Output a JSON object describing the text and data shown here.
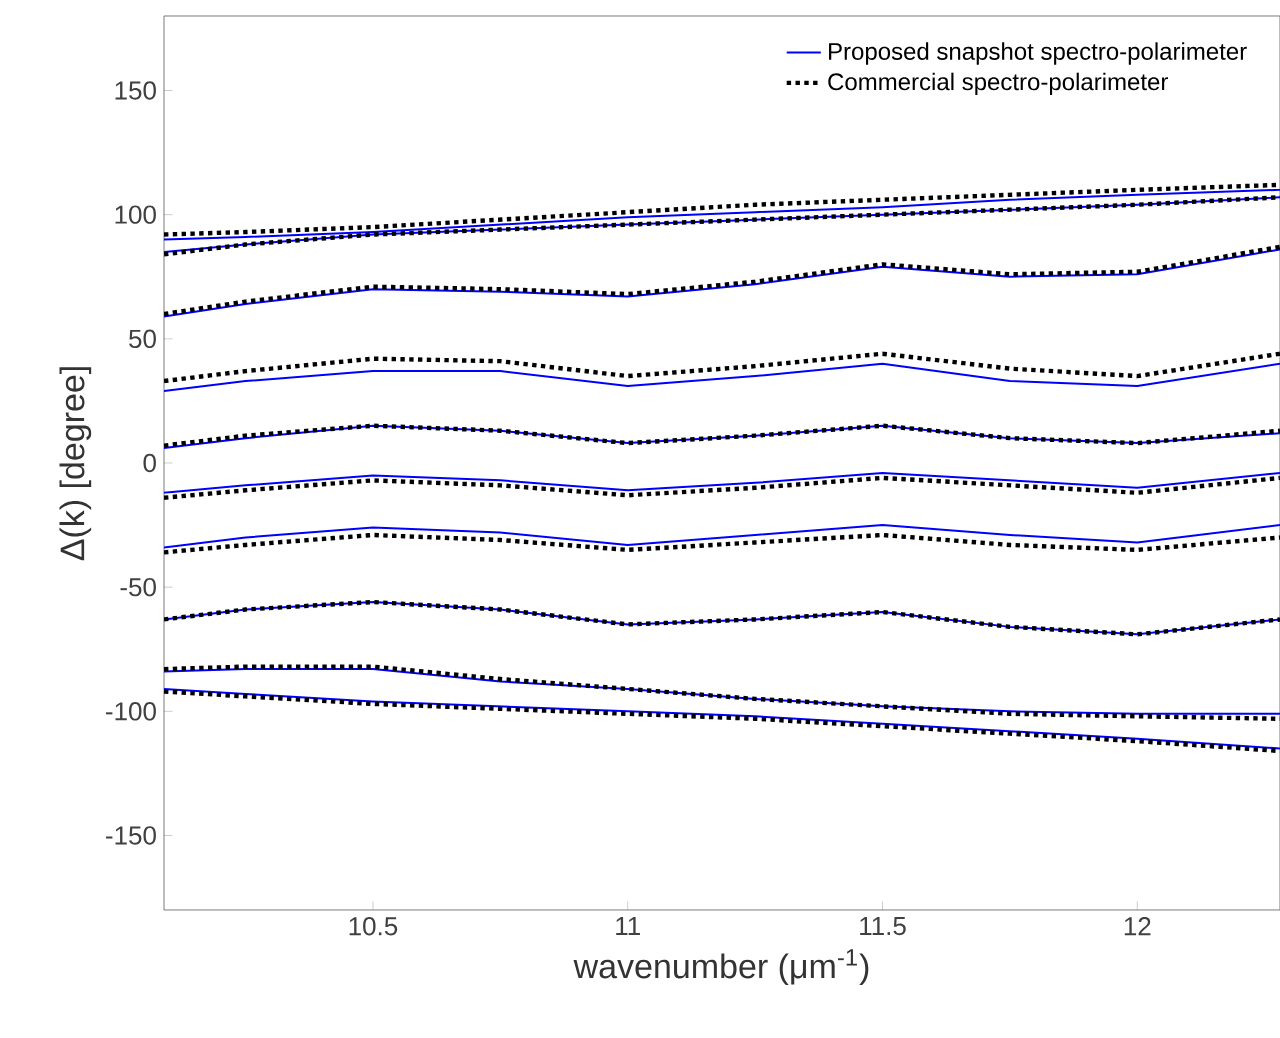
{
  "chart_data": {
    "type": "line",
    "xlabel": "wavenumber (μm$^{-1}$)",
    "ylabel": "Δ(k) [degree]",
    "x": [
      10.09,
      10.25,
      10.5,
      10.75,
      11.0,
      11.25,
      11.5,
      11.75,
      12.0,
      12.28
    ],
    "xlim": [
      10.09,
      12.28
    ],
    "ylim": [
      -180,
      180
    ],
    "xticks": [
      10.5,
      11,
      11.5,
      12
    ],
    "yticks": [
      -150,
      -100,
      -50,
      0,
      50,
      100,
      150
    ],
    "legend": "top right",
    "series": [
      {
        "name": "Proposed snapshot spectro-polarimeter",
        "color": "#0000ff",
        "line_style": "solid",
        "values": [
          90,
          91,
          93,
          96,
          99,
          101,
          103,
          106,
          108,
          110
        ]
      },
      {
        "name": "Commercial spectro-polarimeter",
        "color": "#000000",
        "line_style": "dotted",
        "values": [
          92,
          93,
          95,
          98,
          101,
          104,
          106,
          108,
          110,
          112
        ]
      },
      {
        "color": "#0000ff",
        "line_style": "solid",
        "values": [
          85,
          88,
          92,
          94,
          96,
          98,
          100,
          102,
          104,
          107
        ]
      },
      {
        "color": "#000000",
        "line_style": "dotted",
        "values": [
          84,
          88,
          92,
          94,
          96,
          98,
          100,
          102,
          104,
          107
        ]
      },
      {
        "color": "#0000ff",
        "line_style": "solid",
        "values": [
          59,
          64,
          70,
          69,
          67,
          72,
          79,
          75,
          76,
          86
        ]
      },
      {
        "color": "#000000",
        "line_style": "dotted",
        "values": [
          60,
          65,
          71,
          70,
          68,
          73,
          80,
          76,
          77,
          87
        ]
      },
      {
        "color": "#0000ff",
        "line_style": "solid",
        "values": [
          29,
          33,
          37,
          37,
          31,
          35,
          40,
          33,
          31,
          40
        ]
      },
      {
        "color": "#000000",
        "line_style": "dotted",
        "values": [
          33,
          37,
          42,
          41,
          35,
          39,
          44,
          38,
          35,
          44
        ]
      },
      {
        "color": "#0000ff",
        "line_style": "solid",
        "values": [
          6,
          10,
          15,
          13,
          8,
          11,
          15,
          10,
          8,
          12
        ]
      },
      {
        "color": "#000000",
        "line_style": "dotted",
        "values": [
          7,
          11,
          15,
          13,
          8,
          11,
          15,
          10,
          8,
          13
        ]
      },
      {
        "color": "#0000ff",
        "line_style": "solid",
        "values": [
          -12,
          -9,
          -5,
          -7,
          -11,
          -8,
          -4,
          -7,
          -10,
          -4
        ]
      },
      {
        "color": "#000000",
        "line_style": "dotted",
        "values": [
          -14,
          -11,
          -7,
          -9,
          -13,
          -10,
          -6,
          -9,
          -12,
          -6
        ]
      },
      {
        "color": "#0000ff",
        "line_style": "solid",
        "values": [
          -34,
          -30,
          -26,
          -28,
          -33,
          -29,
          -25,
          -29,
          -32,
          -25
        ]
      },
      {
        "color": "#000000",
        "line_style": "dotted",
        "values": [
          -36,
          -33,
          -29,
          -31,
          -35,
          -32,
          -29,
          -33,
          -35,
          -30
        ]
      },
      {
        "color": "#0000ff",
        "line_style": "solid",
        "values": [
          -63,
          -59,
          -56,
          -59,
          -65,
          -63,
          -60,
          -66,
          -69,
          -63
        ]
      },
      {
        "color": "#000000",
        "line_style": "dotted",
        "values": [
          -63,
          -59,
          -56,
          -59,
          -65,
          -63,
          -60,
          -66,
          -69,
          -63
        ]
      },
      {
        "color": "#0000ff",
        "line_style": "solid",
        "values": [
          -84,
          -83,
          -83,
          -88,
          -91,
          -95,
          -98,
          -100,
          -101,
          -101
        ]
      },
      {
        "color": "#000000",
        "line_style": "dotted",
        "values": [
          -83,
          -82,
          -82,
          -87,
          -91,
          -95,
          -98,
          -101,
          -102,
          -103
        ]
      },
      {
        "color": "#0000ff",
        "line_style": "solid",
        "values": [
          -91,
          -93,
          -96,
          -98,
          -100,
          -102,
          -105,
          -108,
          -111,
          -115
        ]
      },
      {
        "color": "#000000",
        "line_style": "dotted",
        "values": [
          -92,
          -94,
          -97,
          -99,
          -101,
          -103,
          -106,
          -109,
          -112,
          -116
        ]
      }
    ]
  }
}
